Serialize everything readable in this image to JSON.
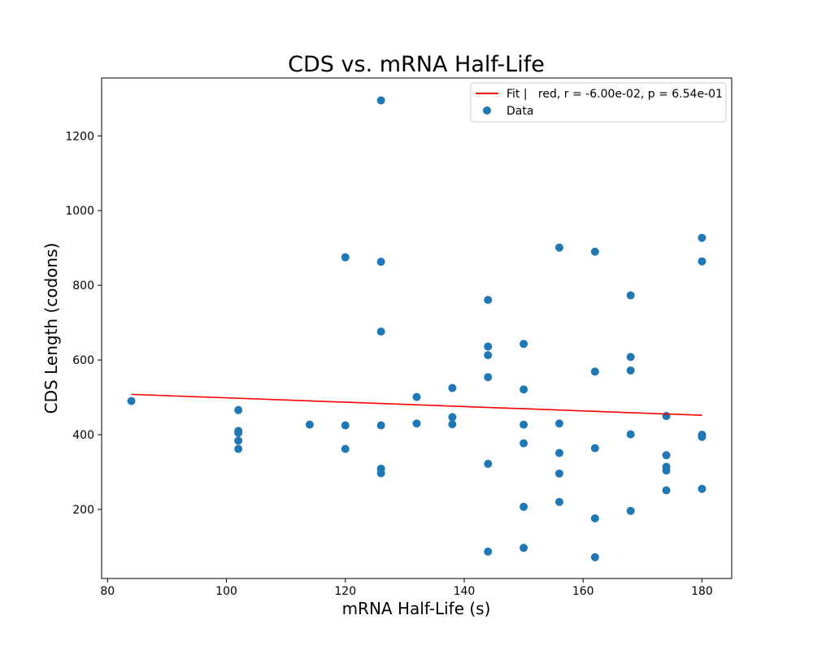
{
  "chart_data": {
    "type": "scatter",
    "title": "CDS vs. mRNA Half-Life",
    "xlabel": "mRNA Half-Life (s)",
    "ylabel": "CDS Length (codons)",
    "xlim": [
      79,
      185
    ],
    "ylim": [
      15,
      1355
    ],
    "xticks": [
      80,
      100,
      120,
      140,
      160,
      180
    ],
    "yticks": [
      200,
      400,
      600,
      800,
      1000,
      1200
    ],
    "grid": false,
    "legend_position": "top-right",
    "colors": {
      "points": "#1f77b4",
      "fit": "#ff0000"
    },
    "series": [
      {
        "name": "Fit |   red, r = -6.00e-02, p = 6.54e-01",
        "kind": "line",
        "x": [
          84,
          180
        ],
        "y": [
          508,
          452
        ]
      },
      {
        "name": "Data",
        "kind": "scatter",
        "points": [
          [
            84,
            490
          ],
          [
            102,
            466
          ],
          [
            102,
            410
          ],
          [
            102,
            405
          ],
          [
            102,
            384
          ],
          [
            102,
            362
          ],
          [
            114,
            427
          ],
          [
            120,
            875
          ],
          [
            120,
            425
          ],
          [
            120,
            362
          ],
          [
            126,
            1295
          ],
          [
            126,
            863
          ],
          [
            126,
            676
          ],
          [
            126,
            425
          ],
          [
            126,
            309
          ],
          [
            126,
            297
          ],
          [
            132,
            501
          ],
          [
            132,
            430
          ],
          [
            138,
            525
          ],
          [
            138,
            447
          ],
          [
            138,
            428
          ],
          [
            144,
            761
          ],
          [
            144,
            636
          ],
          [
            144,
            613
          ],
          [
            144,
            554
          ],
          [
            144,
            322
          ],
          [
            144,
            87
          ],
          [
            150,
            643
          ],
          [
            150,
            521
          ],
          [
            150,
            427
          ],
          [
            150,
            377
          ],
          [
            150,
            207
          ],
          [
            150,
            97
          ],
          [
            156,
            901
          ],
          [
            156,
            430
          ],
          [
            156,
            351
          ],
          [
            156,
            296
          ],
          [
            156,
            220
          ],
          [
            162,
            890
          ],
          [
            162,
            569
          ],
          [
            162,
            364
          ],
          [
            162,
            176
          ],
          [
            162,
            72
          ],
          [
            168,
            773
          ],
          [
            168,
            608
          ],
          [
            168,
            572
          ],
          [
            168,
            401
          ],
          [
            168,
            196
          ],
          [
            174,
            450
          ],
          [
            174,
            345
          ],
          [
            174,
            314
          ],
          [
            174,
            304
          ],
          [
            174,
            251
          ],
          [
            180,
            927
          ],
          [
            180,
            864
          ],
          [
            180,
            400
          ],
          [
            180,
            394
          ],
          [
            180,
            255
          ]
        ]
      }
    ]
  }
}
